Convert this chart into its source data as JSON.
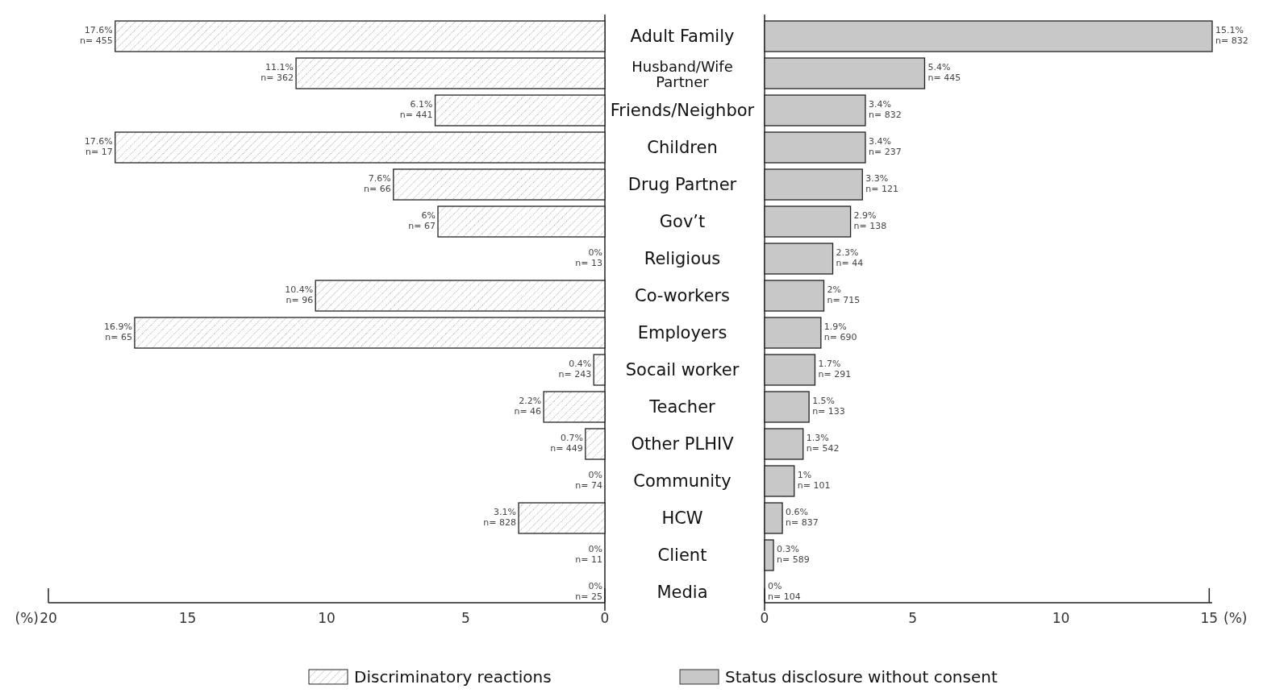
{
  "chart_data": [
    {
      "type": "bar",
      "orientation": "horizontal",
      "categories": [
        "Adult Family",
        "Husband/Wife Partner",
        "Friends/Neighbor",
        "Children",
        "Drug Partner",
        "Gov’t",
        "Religious",
        "Co-workers",
        "Employers",
        "Socail worker",
        "Teacher",
        "Other PLHIV",
        "Community",
        "HCW",
        "Client",
        "Media"
      ],
      "series": [
        {
          "name": "Discriminatory reactions",
          "color": "#222222",
          "values": [
            17.6,
            11.1,
            6.1,
            17.6,
            7.6,
            6,
            0,
            10.4,
            16.9,
            0.4,
            2.2,
            0.7,
            0,
            3.1,
            0,
            0
          ],
          "value_labels": [
            "17.6%\nn= 455",
            "11.1%\nn= 362",
            "6.1%\nn= 441",
            "17.6%\nn= 17",
            "7.6%\nn= 66",
            "6%\nn= 67",
            "0%\nn= 13",
            "10.4%\nn= 96",
            "16.9%\nn= 65",
            "0.4%\nn= 243",
            "2.2%\nn= 46",
            "0.7%\nn= 449",
            "0%\nn= 74",
            "3.1%\nn= 828",
            "0%\nn= 11",
            "0%\nn= 25"
          ]
        }
      ],
      "xlim": [
        20,
        0
      ],
      "xticks": [
        20,
        15,
        10,
        5,
        0
      ],
      "xlabel": "(%)",
      "legend": "bottom"
    },
    {
      "type": "bar",
      "orientation": "horizontal",
      "categories": [
        "Adult Family",
        "Husband/Wife Partner",
        "Friends/Neighbor",
        "Children",
        "Drug Partner",
        "Gov’t",
        "Religious",
        "Co-workers",
        "Employers",
        "Socail worker",
        "Teacher",
        "Other PLHIV",
        "Community",
        "HCW",
        "Client",
        "Media"
      ],
      "series": [
        {
          "name": "Status disclosure without consent",
          "color": "#c8c8c8",
          "values": [
            15.1,
            5.4,
            3.4,
            3.4,
            3.3,
            2.9,
            2.3,
            2,
            1.9,
            1.7,
            1.5,
            1.3,
            1,
            0.6,
            0.3,
            0
          ],
          "value_labels": [
            "15.1%\nn= 832",
            "5.4%\nn= 445",
            "3.4%\nn= 832",
            "3.4%\nn= 237",
            "3.3%\nn= 121",
            "2.9%\nn= 138",
            "2.3%\nn= 44",
            "2%\nn= 715",
            "1.9%\nn= 690",
            "1.7%\nn= 291",
            "1.5%\nn= 133",
            "1.3%\nn= 542",
            "1%\nn= 101",
            "0.6%\nn= 837",
            "0.3%\nn= 589",
            "0%\nn= 104"
          ]
        }
      ],
      "xlim": [
        0,
        15.1
      ],
      "xticks": [
        0,
        5,
        10,
        15
      ],
      "xlabel": "(%)",
      "legend": "bottom",
      "tick_labels": "x"
    }
  ]
}
